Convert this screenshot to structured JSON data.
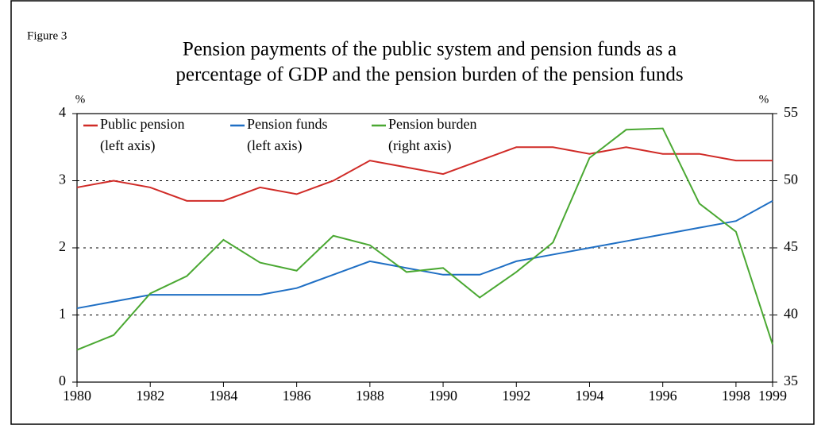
{
  "chart_data": {
    "type": "line",
    "figure_label": "Figure 3",
    "title": [
      "Pension payments of the public system and pension funds as a",
      "percentage of GDP and the pension burden of the pension funds"
    ],
    "y_unit": "%",
    "y2_unit": "%",
    "x": [
      1980,
      1981,
      1982,
      1983,
      1984,
      1985,
      1986,
      1987,
      1988,
      1989,
      1990,
      1991,
      1992,
      1993,
      1994,
      1995,
      1996,
      1997,
      1998,
      1999
    ],
    "xlim": [
      1980,
      1999
    ],
    "xticks": [
      1980,
      1982,
      1984,
      1986,
      1988,
      1990,
      1992,
      1994,
      1996,
      1998,
      1999
    ],
    "ylim": [
      0,
      4
    ],
    "yticks": [
      0,
      1,
      2,
      3,
      4
    ],
    "y2lim": [
      35,
      55
    ],
    "y2ticks": [
      35,
      40,
      45,
      50,
      55
    ],
    "grid": true,
    "series": [
      {
        "name": "Public pension",
        "note": "(left axis)",
        "color": "#d02b27",
        "values": [
          2.9,
          3.0,
          2.9,
          2.7,
          2.7,
          2.9,
          2.8,
          3.0,
          3.3,
          3.2,
          3.1,
          3.3,
          3.5,
          3.5,
          3.4,
          3.5,
          3.4,
          3.4,
          3.3,
          3.3
        ]
      },
      {
        "name": "Pension funds",
        "note": "(left axis)",
        "color": "#1f6fc4",
        "values": [
          1.1,
          1.2,
          1.3,
          1.3,
          1.3,
          1.3,
          1.4,
          1.6,
          1.8,
          1.7,
          1.6,
          1.6,
          1.8,
          1.9,
          2.0,
          2.1,
          2.2,
          2.3,
          2.4,
          2.7
        ]
      },
      {
        "name": "Pension burden",
        "note": "(right axis)",
        "color": "#4aa832",
        "axis": "y2",
        "values": [
          37.4,
          38.5,
          41.6,
          42.9,
          45.6,
          43.9,
          43.3,
          45.9,
          45.2,
          43.2,
          43.5,
          41.3,
          43.2,
          45.4,
          51.7,
          53.8,
          53.9,
          48.3,
          46.2,
          37.8
        ]
      }
    ]
  }
}
